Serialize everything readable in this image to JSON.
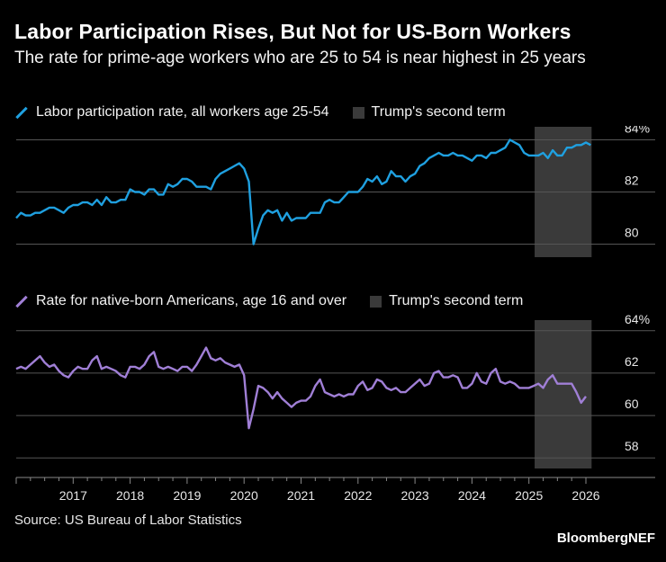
{
  "title": "Labor Participation Rises, But Not for US-Born Workers",
  "subtitle": "The rate for prime-age workers who are 25 to 54 is near highest in 25 years",
  "source": "Source: US Bureau of Labor Statistics",
  "brand": "BloombergNEF",
  "colors": {
    "background": "#000000",
    "series1": "#1fa0e0",
    "series2": "#a07fd6",
    "shade": "#3a3a3a",
    "grid": "#555555",
    "text": "#ffffff"
  },
  "chart_data": [
    {
      "type": "line",
      "title": "Labor participation rate, all workers age 25-54",
      "legend": {
        "series_label": "Labor participation rate, all workers age 25-54",
        "shade_label": "Trump's second term"
      },
      "ylim": [
        79.5,
        84.5
      ],
      "y_ticks": [
        80,
        82,
        84
      ],
      "y_tick_labels": [
        "80",
        "82",
        "84%"
      ],
      "shaded_region": {
        "start": 2025.1,
        "end": 2026.1
      },
      "series": [
        {
          "name": "Labor participation rate, all workers age 25-54",
          "x_start": 2016.0,
          "x_step": 0.0833333,
          "values": [
            81.0,
            81.2,
            81.1,
            81.1,
            81.2,
            81.2,
            81.3,
            81.4,
            81.4,
            81.3,
            81.2,
            81.4,
            81.5,
            81.5,
            81.6,
            81.6,
            81.5,
            81.7,
            81.5,
            81.8,
            81.6,
            81.6,
            81.7,
            81.7,
            82.1,
            82.0,
            82.0,
            81.9,
            82.1,
            82.1,
            81.9,
            81.9,
            82.3,
            82.2,
            82.3,
            82.5,
            82.5,
            82.4,
            82.2,
            82.2,
            82.2,
            82.1,
            82.5,
            82.7,
            82.8,
            82.9,
            83.0,
            83.1,
            82.9,
            82.4,
            80.0,
            80.6,
            81.1,
            81.3,
            81.2,
            81.3,
            80.9,
            81.2,
            80.9,
            81.0,
            81.0,
            81.0,
            81.2,
            81.2,
            81.2,
            81.6,
            81.7,
            81.6,
            81.6,
            81.8,
            82.0,
            82.0,
            82.0,
            82.2,
            82.5,
            82.4,
            82.6,
            82.3,
            82.4,
            82.8,
            82.6,
            82.6,
            82.4,
            82.6,
            82.7,
            83.0,
            83.1,
            83.3,
            83.4,
            83.5,
            83.4,
            83.4,
            83.5,
            83.4,
            83.4,
            83.3,
            83.2,
            83.4,
            83.4,
            83.3,
            83.5,
            83.5,
            83.6,
            83.7,
            84.0,
            83.9,
            83.8,
            83.5,
            83.4,
            83.4,
            83.4,
            83.5,
            83.3,
            83.6,
            83.4,
            83.4,
            83.7,
            83.7,
            83.8,
            83.8,
            83.9,
            83.8
          ]
        }
      ]
    },
    {
      "type": "line",
      "title": "Rate for native-born Americans, age 16 and over",
      "legend": {
        "series_label": "Rate for native-born Americans, age 16 and over",
        "shade_label": "Trump's second term"
      },
      "ylim": [
        57.5,
        64.5
      ],
      "y_ticks": [
        58,
        60,
        62,
        64
      ],
      "y_tick_labels": [
        "58",
        "60",
        "62",
        "64%"
      ],
      "shaded_region": {
        "start": 2025.1,
        "end": 2026.1
      },
      "x_tick_labels": [
        "2017",
        "2018",
        "2019",
        "2020",
        "2021",
        "2022",
        "2023",
        "2024",
        "2025",
        "2026"
      ],
      "series": [
        {
          "name": "Rate for native-born Americans, age 16 and over",
          "x_start": 2016.0,
          "x_step": 0.0833333,
          "values": [
            62.2,
            62.3,
            62.2,
            62.4,
            62.6,
            62.8,
            62.5,
            62.3,
            62.4,
            62.1,
            61.9,
            61.8,
            62.1,
            62.3,
            62.2,
            62.2,
            62.6,
            62.8,
            62.2,
            62.3,
            62.2,
            62.1,
            61.9,
            61.8,
            62.3,
            62.3,
            62.2,
            62.4,
            62.8,
            63.0,
            62.3,
            62.2,
            62.3,
            62.2,
            62.1,
            62.3,
            62.3,
            62.1,
            62.4,
            62.8,
            63.2,
            62.7,
            62.6,
            62.7,
            62.5,
            62.4,
            62.3,
            62.4,
            61.9,
            59.4,
            60.3,
            61.4,
            61.3,
            61.1,
            60.8,
            61.1,
            60.8,
            60.6,
            60.4,
            60.6,
            60.7,
            60.7,
            60.9,
            61.4,
            61.7,
            61.1,
            61.0,
            60.9,
            61.0,
            60.9,
            61.0,
            61.0,
            61.4,
            61.6,
            61.2,
            61.3,
            61.7,
            61.6,
            61.3,
            61.2,
            61.3,
            61.1,
            61.1,
            61.3,
            61.5,
            61.7,
            61.4,
            61.5,
            62.0,
            62.1,
            61.8,
            61.8,
            61.9,
            61.8,
            61.3,
            61.3,
            61.5,
            62.0,
            61.6,
            61.5,
            62.0,
            62.2,
            61.6,
            61.5,
            61.6,
            61.5,
            61.3,
            61.3,
            61.3,
            61.4,
            61.5,
            61.3,
            61.7,
            61.9,
            61.5,
            61.5,
            61.5,
            61.5,
            61.1,
            60.6,
            60.9
          ]
        }
      ]
    }
  ]
}
